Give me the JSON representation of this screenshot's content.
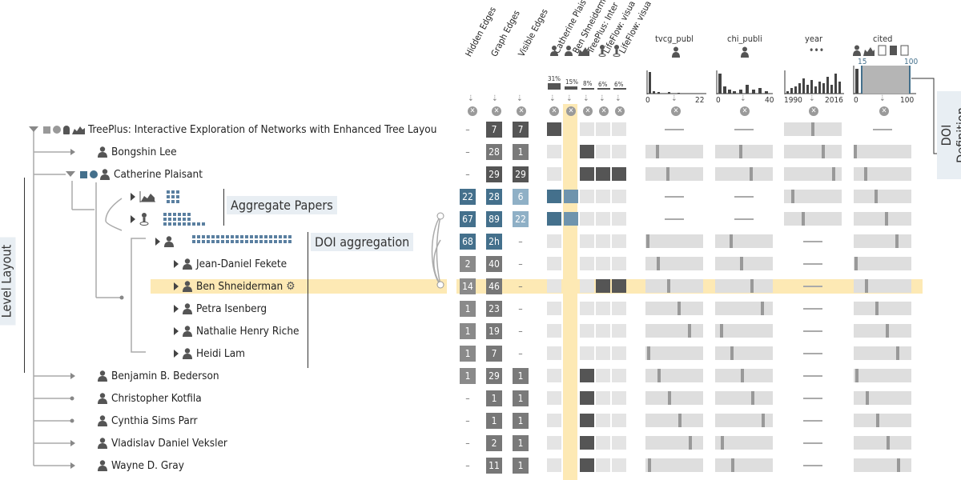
{
  "tree": {
    "root": "TreePlus: Interactive Exploration of Networks with Enhanced Tree Layou",
    "nodes": [
      "Bongshin Lee",
      "Catherine Plaisant",
      "Jean-Daniel Fekete",
      "Ben Shneiderman",
      "Petra Isenberg",
      "Nathalie Henry Riche",
      "Heidi Lam",
      "Benjamin B. Bederson",
      "Christopher Kotfila",
      "Cynthia Sims Parr",
      "Vladislav Daniel Veksler",
      "Wayne D. Gray"
    ]
  },
  "annotations": {
    "aggregate_papers": "Aggregate Papers",
    "doi_aggregation": "DOI aggregation",
    "level_layout": "Level Layout",
    "doi_definition": "DOI Definition"
  },
  "columns": {
    "hidden_edges": "Hidden Edges",
    "graph_edges": "Graph Edges",
    "visible_edges": "Visible Edges",
    "catherine": "Catherine Plais",
    "ben": "Ben Shneiderman",
    "treeplus": "TreePlus: Inter",
    "lifeflow1": "LifeFlow: visua",
    "lifeflow2": "LifeFlow: visua",
    "tvcg": "tvcg_publ",
    "chi": "chi_publi",
    "year": "year",
    "cited": "cited"
  },
  "percents": [
    "31%",
    "15%",
    "8%",
    "6%",
    "6%"
  ],
  "axis": {
    "tvcg_min": "0",
    "tvcg_max": "22",
    "chi_min": "0",
    "chi_max": "40",
    "year_min": "1990",
    "year_max": "2016",
    "cited_min": "0",
    "cited_max": "100",
    "cited_sel_min": "15",
    "cited_sel_max": "100"
  },
  "rows": [
    {
      "h": "–",
      "g": "7",
      "v": "7"
    },
    {
      "h": "–",
      "g": "28",
      "v": "1"
    },
    {
      "h": "–",
      "g": "29",
      "v": "29"
    },
    {
      "h": "22",
      "g": "28",
      "v": "6"
    },
    {
      "h": "67",
      "g": "89",
      "v": "22"
    },
    {
      "h": "68",
      "g": "2h",
      "v": "–"
    },
    {
      "h": "2",
      "g": "40",
      "v": "–"
    },
    {
      "h": "14",
      "g": "46",
      "v": "–"
    },
    {
      "h": "1",
      "g": "23",
      "v": "–"
    },
    {
      "h": "1",
      "g": "19",
      "v": "–"
    },
    {
      "h": "1",
      "g": "7",
      "v": "–"
    },
    {
      "h": "1",
      "g": "29",
      "v": "1"
    },
    {
      "h": "–",
      "g": "1",
      "v": "1"
    },
    {
      "h": "–",
      "g": "1",
      "v": "1"
    },
    {
      "h": "–",
      "g": "2",
      "v": "1"
    },
    {
      "h": "–",
      "g": "11",
      "v": "1"
    }
  ],
  "colors": {
    "highlight": "#fde9b4",
    "dark_cell": "#555555",
    "mid_cell": "#8a8a8a",
    "blue_dark": "#44708c",
    "blue_light": "#8fb0c6",
    "bar_bg": "#dedede"
  }
}
